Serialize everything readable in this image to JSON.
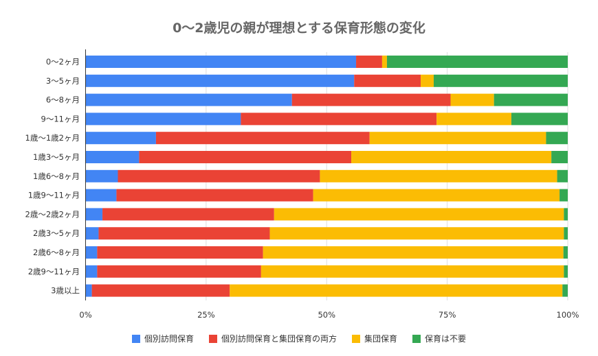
{
  "chart_data": {
    "type": "bar",
    "orientation": "horizontal",
    "stacked": "percent",
    "title": "0〜2歳児の親が理想とする保育形態の変化",
    "categories": [
      "0〜2ヶ月",
      "3〜5ヶ月",
      "6〜8ヶ月",
      "9〜11ヶ月",
      "1歳〜1歳2ヶ月",
      "1歳3〜5ヶ月",
      "1歳6〜8ヶ月",
      "1歳9〜11ヶ月",
      "2歳〜2歳2ヶ月",
      "2歳3〜5ヶ月",
      "2歳6〜8ヶ月",
      "2歳9〜11ヶ月",
      "3歳以上"
    ],
    "series": [
      {
        "name": "個別訪問保育",
        "color": "#4285f4",
        "values": [
          56.1,
          55.7,
          42.8,
          32.2,
          14.6,
          11.1,
          6.7,
          6.4,
          3.5,
          2.7,
          2.4,
          2.4,
          1.3
        ]
      },
      {
        "name": "個別訪問保育と集団保育の両方",
        "color": "#ea4335",
        "values": [
          5.4,
          13.8,
          32.9,
          40.6,
          44.3,
          44.0,
          41.9,
          40.8,
          35.6,
          35.5,
          34.4,
          34.0,
          28.6
        ]
      },
      {
        "name": "集団保育",
        "color": "#fbbc04",
        "values": [
          1.0,
          2.7,
          9.0,
          15.5,
          36.6,
          41.5,
          49.2,
          51.1,
          60.1,
          61.0,
          62.3,
          62.8,
          69.0
        ]
      },
      {
        "name": "保育は不要",
        "color": "#34a853",
        "values": [
          37.5,
          27.8,
          15.3,
          11.7,
          4.5,
          3.4,
          2.2,
          1.7,
          0.8,
          0.8,
          0.9,
          0.8,
          1.1
        ]
      }
    ],
    "xticks": [
      "0%",
      "25%",
      "50%",
      "75%",
      "100%"
    ],
    "xlim": [
      0,
      100
    ],
    "grid": true,
    "legend": "bottom"
  }
}
